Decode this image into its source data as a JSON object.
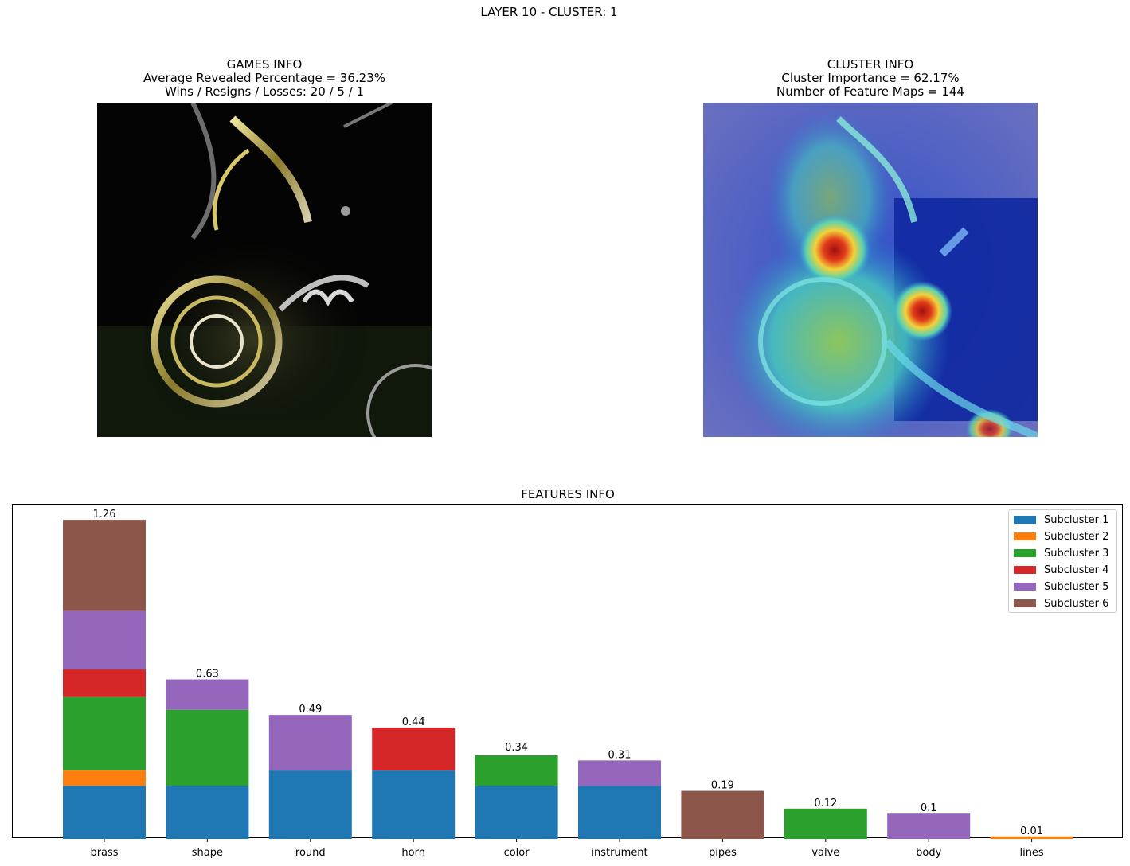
{
  "suptitle": "LAYER 10 - CLUSTER: 1",
  "games_info": {
    "title": "GAMES INFO",
    "line1": "Average Revealed Percentage = 36.23%",
    "line2": "Wins / Resigns / Losses: 20 / 5 / 1"
  },
  "cluster_info": {
    "title": "CLUSTER INFO",
    "line1": "Cluster Importance = 62.17%",
    "line2": "Number of Feature Maps = 144"
  },
  "chart_data": {
    "type": "bar",
    "stacked": true,
    "title": "FEATURES INFO",
    "xlabel": "",
    "ylabel": "",
    "ylim": [
      0,
      1.32
    ],
    "grid": false,
    "legend_position": "top-right",
    "categories": [
      "brass",
      "shape",
      "round",
      "horn",
      "color",
      "instrument",
      "pipes",
      "valve",
      "body",
      "lines"
    ],
    "totals": [
      1.26,
      0.63,
      0.49,
      0.44,
      0.34,
      0.31,
      0.19,
      0.12,
      0.1,
      0.01
    ],
    "total_labels": [
      "1.26",
      "0.63",
      "0.49",
      "0.44",
      "0.34",
      "0.31",
      "0.19",
      "0.12",
      "0.1",
      "0.01"
    ],
    "series": [
      {
        "name": "Subcluster 1",
        "color": "#1f77b4",
        "values": [
          0.21,
          0.21,
          0.27,
          0.27,
          0.21,
          0.21,
          0,
          0,
          0,
          0
        ]
      },
      {
        "name": "Subcluster 2",
        "color": "#ff7f0e",
        "values": [
          0.06,
          0,
          0,
          0,
          0,
          0,
          0,
          0,
          0,
          0.01
        ]
      },
      {
        "name": "Subcluster 3",
        "color": "#2ca02c",
        "values": [
          0.29,
          0.3,
          0,
          0,
          0.12,
          0,
          0,
          0.12,
          0,
          0
        ]
      },
      {
        "name": "Subcluster 4",
        "color": "#d62728",
        "values": [
          0.11,
          0,
          0,
          0.17,
          0,
          0,
          0,
          0,
          0,
          0
        ]
      },
      {
        "name": "Subcluster 5",
        "color": "#9467bd",
        "values": [
          0.23,
          0.12,
          0.22,
          0,
          0,
          0.1,
          0,
          0,
          0.1,
          0
        ]
      },
      {
        "name": "Subcluster 6",
        "color": "#8c564b",
        "values": [
          0.36,
          0,
          0,
          0,
          0,
          0,
          0.19,
          0,
          0,
          0
        ]
      }
    ]
  }
}
